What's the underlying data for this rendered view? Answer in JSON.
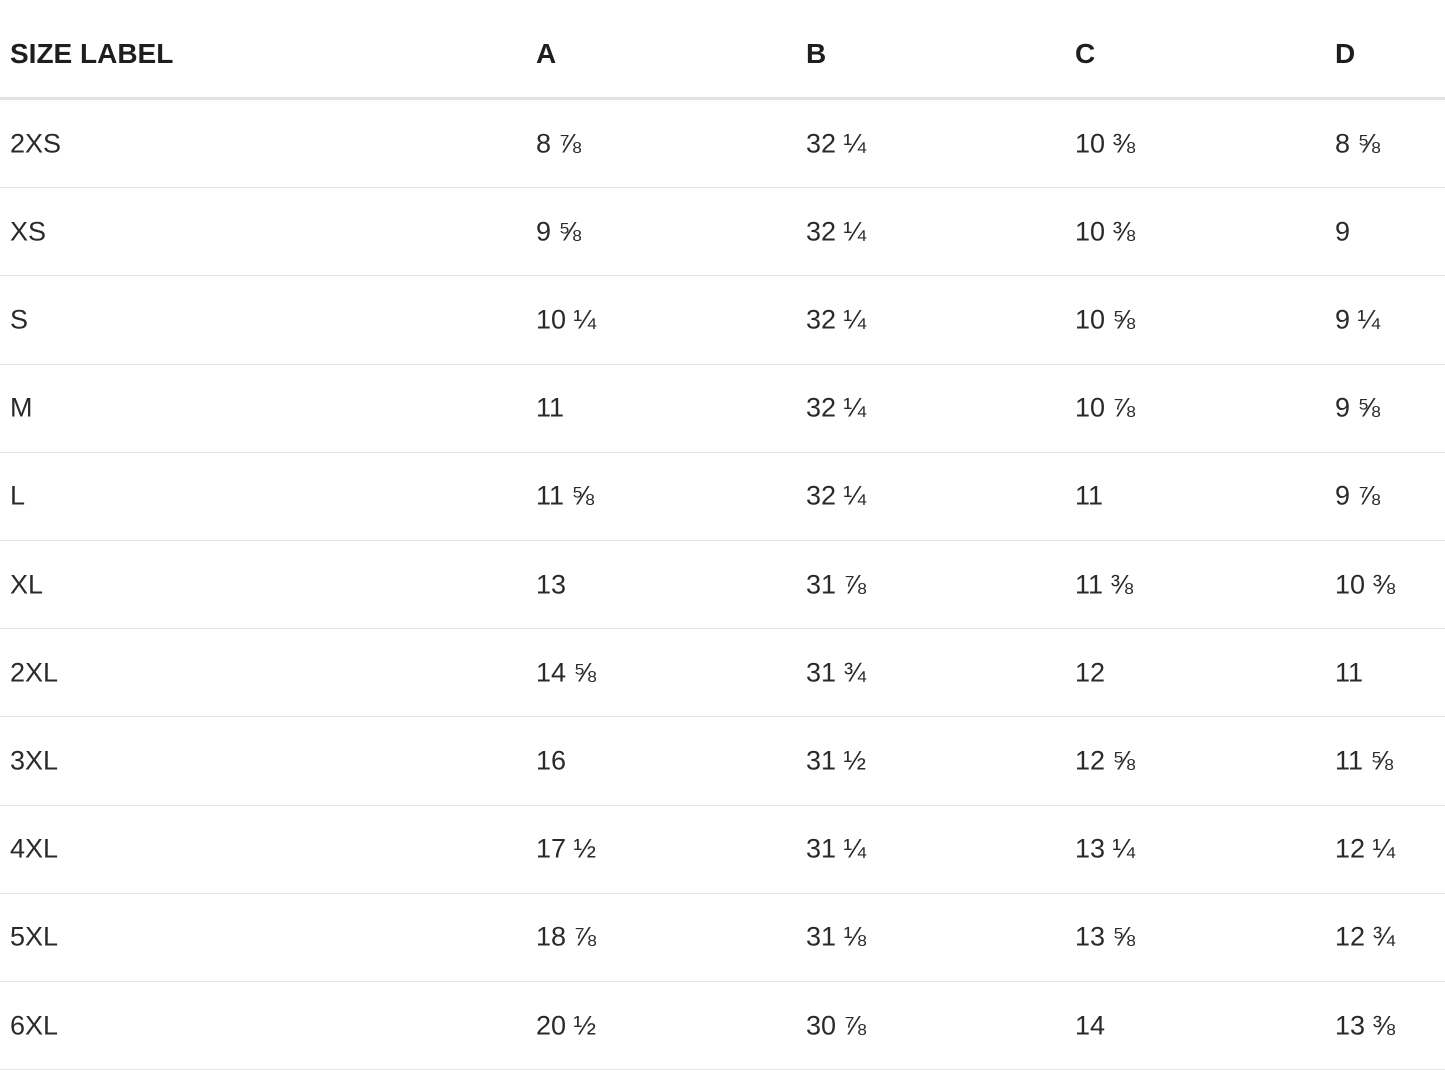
{
  "table": {
    "headers": [
      "SIZE LABEL",
      "A",
      "B",
      "C",
      "D"
    ],
    "rows": [
      [
        "2XS",
        "8 ⅞",
        "32 ¼",
        "10 ⅜",
        "8 ⅝"
      ],
      [
        "XS",
        "9 ⅝",
        "32 ¼",
        "10 ⅜",
        "9"
      ],
      [
        "S",
        "10 ¼",
        "32 ¼",
        "10 ⅝",
        "9 ¼"
      ],
      [
        "M",
        "11",
        "32 ¼",
        "10 ⅞",
        "9 ⅝"
      ],
      [
        "L",
        "11 ⅝",
        "32 ¼",
        "11",
        "9 ⅞"
      ],
      [
        "XL",
        "13",
        "31 ⅞",
        "11 ⅜",
        "10 ⅜"
      ],
      [
        "2XL",
        "14 ⅝",
        "31 ¾",
        "12",
        "11"
      ],
      [
        "3XL",
        "16",
        "31 ½",
        "12 ⅝",
        "11 ⅝"
      ],
      [
        "4XL",
        "17 ½",
        "31 ¼",
        "13 ¼",
        "12 ¼"
      ],
      [
        "5XL",
        "18 ⅞",
        "31 ⅛",
        "13 ⅝",
        "12 ¾"
      ],
      [
        "6XL",
        "20 ½",
        "30 ⅞",
        "14",
        "13 ⅜"
      ]
    ]
  }
}
